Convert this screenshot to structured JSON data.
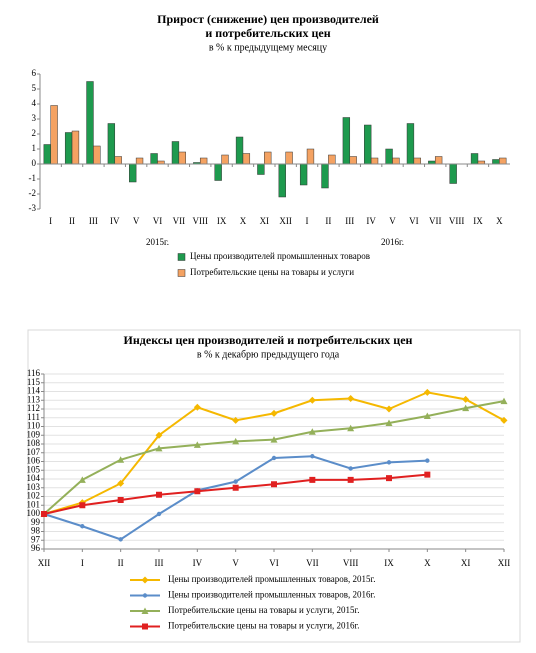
{
  "chart_data": [
    {
      "type": "bar",
      "title": [
        "Прирост (снижение) цен производителей",
        "и потребительских цен"
      ],
      "subtitle": "в % к предыдущему месяцу",
      "categories": [
        "I",
        "II",
        "III",
        "IV",
        "V",
        "VI",
        "VII",
        "VIII",
        "IX",
        "X",
        "XI",
        "XII",
        "I",
        "II",
        "III",
        "IV",
        "V",
        "VI",
        "VII",
        "VIII",
        "IX",
        "X"
      ],
      "group_labels": [
        "2015г.",
        "2016г."
      ],
      "series": [
        {
          "name": "Цены производителей промышленных товаров",
          "color": "#1e9a4e",
          "values": [
            1.3,
            2.1,
            5.5,
            2.7,
            -1.2,
            0.7,
            1.5,
            0.1,
            -1.1,
            1.8,
            -0.7,
            -2.2,
            -1.4,
            -1.6,
            3.1,
            2.6,
            1.0,
            2.7,
            0.2,
            -1.3,
            0.7,
            0.3
          ]
        },
        {
          "name": "Потребительские цены на товары и услуги",
          "color": "#f4a262",
          "values": [
            3.9,
            2.2,
            1.2,
            0.5,
            0.4,
            0.2,
            0.8,
            0.4,
            0.6,
            0.7,
            0.8,
            0.8,
            1.0,
            0.6,
            0.5,
            0.4,
            0.4,
            0.4,
            0.5,
            0.0,
            0.2,
            0.4
          ]
        }
      ],
      "ylim": [
        -3,
        6
      ],
      "yticks": [
        -3,
        -2,
        -1,
        0,
        1,
        2,
        3,
        4,
        5,
        6
      ],
      "grid": false
    },
    {
      "type": "line",
      "title": [
        "Индексы цен производителей и потребительских цен"
      ],
      "subtitle": "в % к декабрю предыдущего года",
      "categories": [
        "XII",
        "I",
        "II",
        "III",
        "IV",
        "V",
        "VI",
        "VII",
        "VIII",
        "IX",
        "X",
        "XI",
        "XII"
      ],
      "series": [
        {
          "name": "Цены производителей промышленных товаров, 2015г.",
          "color": "#f5b800",
          "marker": "diamond",
          "values": [
            100,
            101.3,
            103.5,
            109.0,
            112.2,
            110.7,
            111.5,
            113.0,
            113.2,
            112.0,
            113.9,
            113.1,
            110.7
          ]
        },
        {
          "name": "Цены производителей промышленных товаров, 2016г.",
          "color": "#5b8dc9",
          "marker": "circle",
          "values": [
            100,
            98.6,
            97.1,
            100.0,
            102.7,
            103.7,
            106.4,
            106.6,
            105.2,
            105.9,
            106.1,
            null,
            null
          ]
        },
        {
          "name": "Потребительские цены на товары и услуги, 2015г.",
          "color": "#94b05a",
          "marker": "triangle",
          "values": [
            100,
            103.9,
            106.2,
            107.5,
            107.9,
            108.3,
            108.5,
            109.4,
            109.8,
            110.4,
            111.2,
            112.1,
            112.9
          ]
        },
        {
          "name": "Потребительские цены на товары и услуги, 2016г.",
          "color": "#e02020",
          "marker": "square",
          "values": [
            100,
            101.0,
            101.6,
            102.2,
            102.6,
            103.0,
            103.4,
            103.9,
            103.9,
            104.1,
            104.5,
            null,
            null
          ]
        }
      ],
      "ylim": [
        96,
        116
      ],
      "yticks": [
        96,
        97,
        98,
        99,
        100,
        101,
        102,
        103,
        104,
        105,
        106,
        107,
        108,
        109,
        110,
        111,
        112,
        113,
        114,
        115,
        116
      ],
      "grid": true
    }
  ]
}
